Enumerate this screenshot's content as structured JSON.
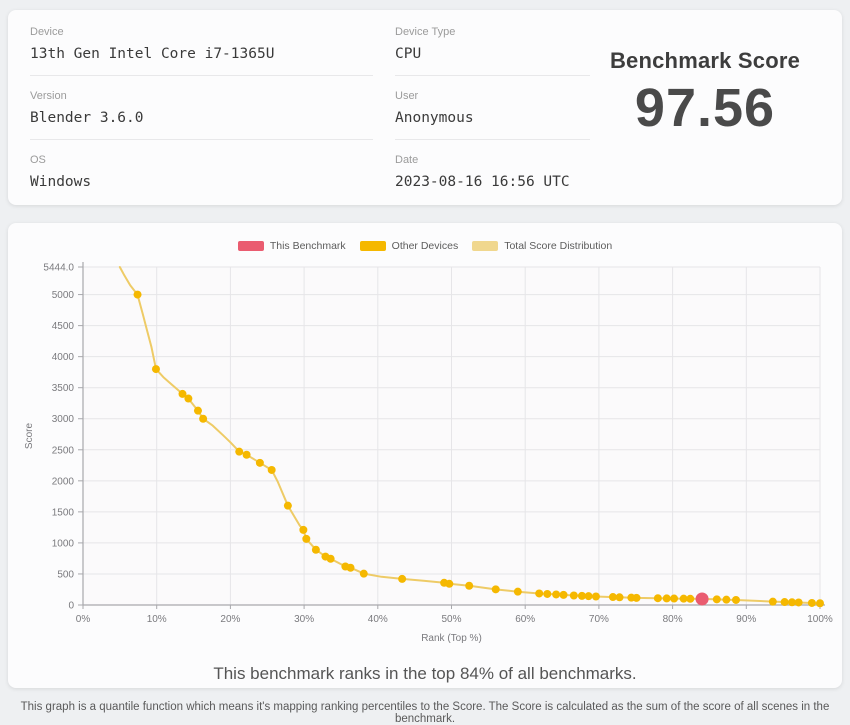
{
  "info_card": {
    "fields": [
      {
        "label": "Device",
        "value": "13th Gen Intel Core i7-1365U"
      },
      {
        "label": "Version",
        "value": "Blender 3.6.0"
      },
      {
        "label": "OS",
        "value": "Windows"
      },
      {
        "label": "Device Type",
        "value": "CPU"
      },
      {
        "label": "User",
        "value": "Anonymous"
      },
      {
        "label": "Date",
        "value": "2023-08-16 16:56 UTC"
      }
    ],
    "score_title": "Benchmark Score",
    "score_value": "97.56"
  },
  "chart_card": {
    "legend": [
      {
        "label": "This Benchmark",
        "color": "#ea5c70"
      },
      {
        "label": "Other Devices",
        "color": "#f5b800"
      },
      {
        "label": "Total Score Distribution",
        "color": "#f0d78e"
      }
    ],
    "rank_text": "This benchmark ranks in the top 84% of all benchmarks."
  },
  "footer_note": "This graph is a quantile function which means it's mapping ranking percentiles to the Score. The Score is calculated as the sum of the score of all scenes in the benchmark.",
  "chart_data": {
    "type": "line",
    "title": "",
    "xlabel": "Rank (Top %)",
    "ylabel": "Score",
    "xlim": [
      0,
      100
    ],
    "ylim": [
      0,
      5444
    ],
    "grid": true,
    "legend_position": "top",
    "line_color": "#eecb66",
    "dot_color": "#f5b800",
    "benchmark_color": "#ea5c70",
    "axis_color": "#a8a8ac",
    "grid_color": "#e6e5e8",
    "tick_text_color": "#7a7a7e",
    "plot_bg": "#fbfafb",
    "benchmark_point": {
      "rank_pct": 84,
      "score": 97.56
    },
    "x_ticks": [
      [
        0,
        "0%"
      ],
      [
        10,
        "10%"
      ],
      [
        20,
        "20%"
      ],
      [
        30,
        "30%"
      ],
      [
        40,
        "40%"
      ],
      [
        50,
        "50%"
      ],
      [
        60,
        "60%"
      ],
      [
        70,
        "70%"
      ],
      [
        80,
        "80%"
      ],
      [
        90,
        "90%"
      ],
      [
        100,
        "100%"
      ]
    ],
    "y_ticks": [
      [
        5444,
        "5444.0"
      ],
      [
        5000,
        "5000"
      ],
      [
        4500,
        "4500"
      ],
      [
        4000,
        "4000"
      ],
      [
        3500,
        "3500"
      ],
      [
        3000,
        "3000"
      ],
      [
        2500,
        "2500"
      ],
      [
        2000,
        "2000"
      ],
      [
        1500,
        "1500"
      ],
      [
        1000,
        "1000"
      ],
      [
        500,
        "500"
      ],
      [
        0,
        "0"
      ]
    ],
    "points": [
      [
        5.0,
        5444,
        0
      ],
      [
        5.6,
        5310,
        0
      ],
      [
        6.4,
        5150,
        0
      ],
      [
        7.4,
        5000,
        1
      ],
      [
        8.1,
        4690,
        0
      ],
      [
        8.7,
        4420,
        0
      ],
      [
        9.3,
        4150,
        0
      ],
      [
        9.9,
        3800,
        1
      ],
      [
        10.9,
        3670,
        0
      ],
      [
        12.0,
        3555,
        0
      ],
      [
        13.5,
        3400,
        1
      ],
      [
        14.3,
        3325,
        1
      ],
      [
        15.6,
        3130,
        1
      ],
      [
        16.3,
        3000,
        1
      ],
      [
        17.6,
        2890,
        0
      ],
      [
        19.0,
        2735,
        0
      ],
      [
        20.0,
        2620,
        0
      ],
      [
        21.2,
        2470,
        1
      ],
      [
        22.2,
        2420,
        1
      ],
      [
        24.0,
        2290,
        1
      ],
      [
        25.6,
        2175,
        1
      ],
      [
        26.4,
        1990,
        0
      ],
      [
        27.8,
        1600,
        1
      ],
      [
        29.4,
        1280,
        0
      ],
      [
        29.9,
        1210,
        1
      ],
      [
        30.3,
        1065,
        1
      ],
      [
        31.6,
        890,
        1
      ],
      [
        32.9,
        780,
        1
      ],
      [
        33.6,
        745,
        1
      ],
      [
        35.6,
        620,
        1
      ],
      [
        36.3,
        600,
        1
      ],
      [
        38.1,
        505,
        1
      ],
      [
        40.5,
        455,
        0
      ],
      [
        43.3,
        420,
        1
      ],
      [
        46.2,
        390,
        0
      ],
      [
        49.0,
        358,
        1
      ],
      [
        49.7,
        342,
        1
      ],
      [
        52.4,
        310,
        1
      ],
      [
        56.0,
        252,
        1
      ],
      [
        59.0,
        215,
        1
      ],
      [
        61.9,
        186,
        1
      ],
      [
        63.0,
        178,
        1
      ],
      [
        64.2,
        170,
        1
      ],
      [
        65.2,
        163,
        1
      ],
      [
        66.6,
        153,
        1
      ],
      [
        67.7,
        147,
        1
      ],
      [
        68.6,
        142,
        1
      ],
      [
        69.6,
        137,
        1
      ],
      [
        71.9,
        128,
        1
      ],
      [
        72.8,
        124,
        1
      ],
      [
        74.4,
        118,
        1
      ],
      [
        75.1,
        115,
        1
      ],
      [
        78.0,
        109,
        1
      ],
      [
        79.2,
        106,
        1
      ],
      [
        80.2,
        104,
        1
      ],
      [
        81.5,
        102,
        1
      ],
      [
        82.4,
        100,
        1
      ],
      [
        84.0,
        97.56,
        2
      ],
      [
        86.0,
        91,
        1
      ],
      [
        87.3,
        86,
        1
      ],
      [
        88.6,
        81,
        1
      ],
      [
        93.6,
        54,
        1
      ],
      [
        95.2,
        48,
        1
      ],
      [
        96.2,
        44,
        1
      ],
      [
        97.1,
        41,
        1
      ],
      [
        98.9,
        33,
        1
      ],
      [
        100.0,
        28,
        1
      ]
    ]
  }
}
